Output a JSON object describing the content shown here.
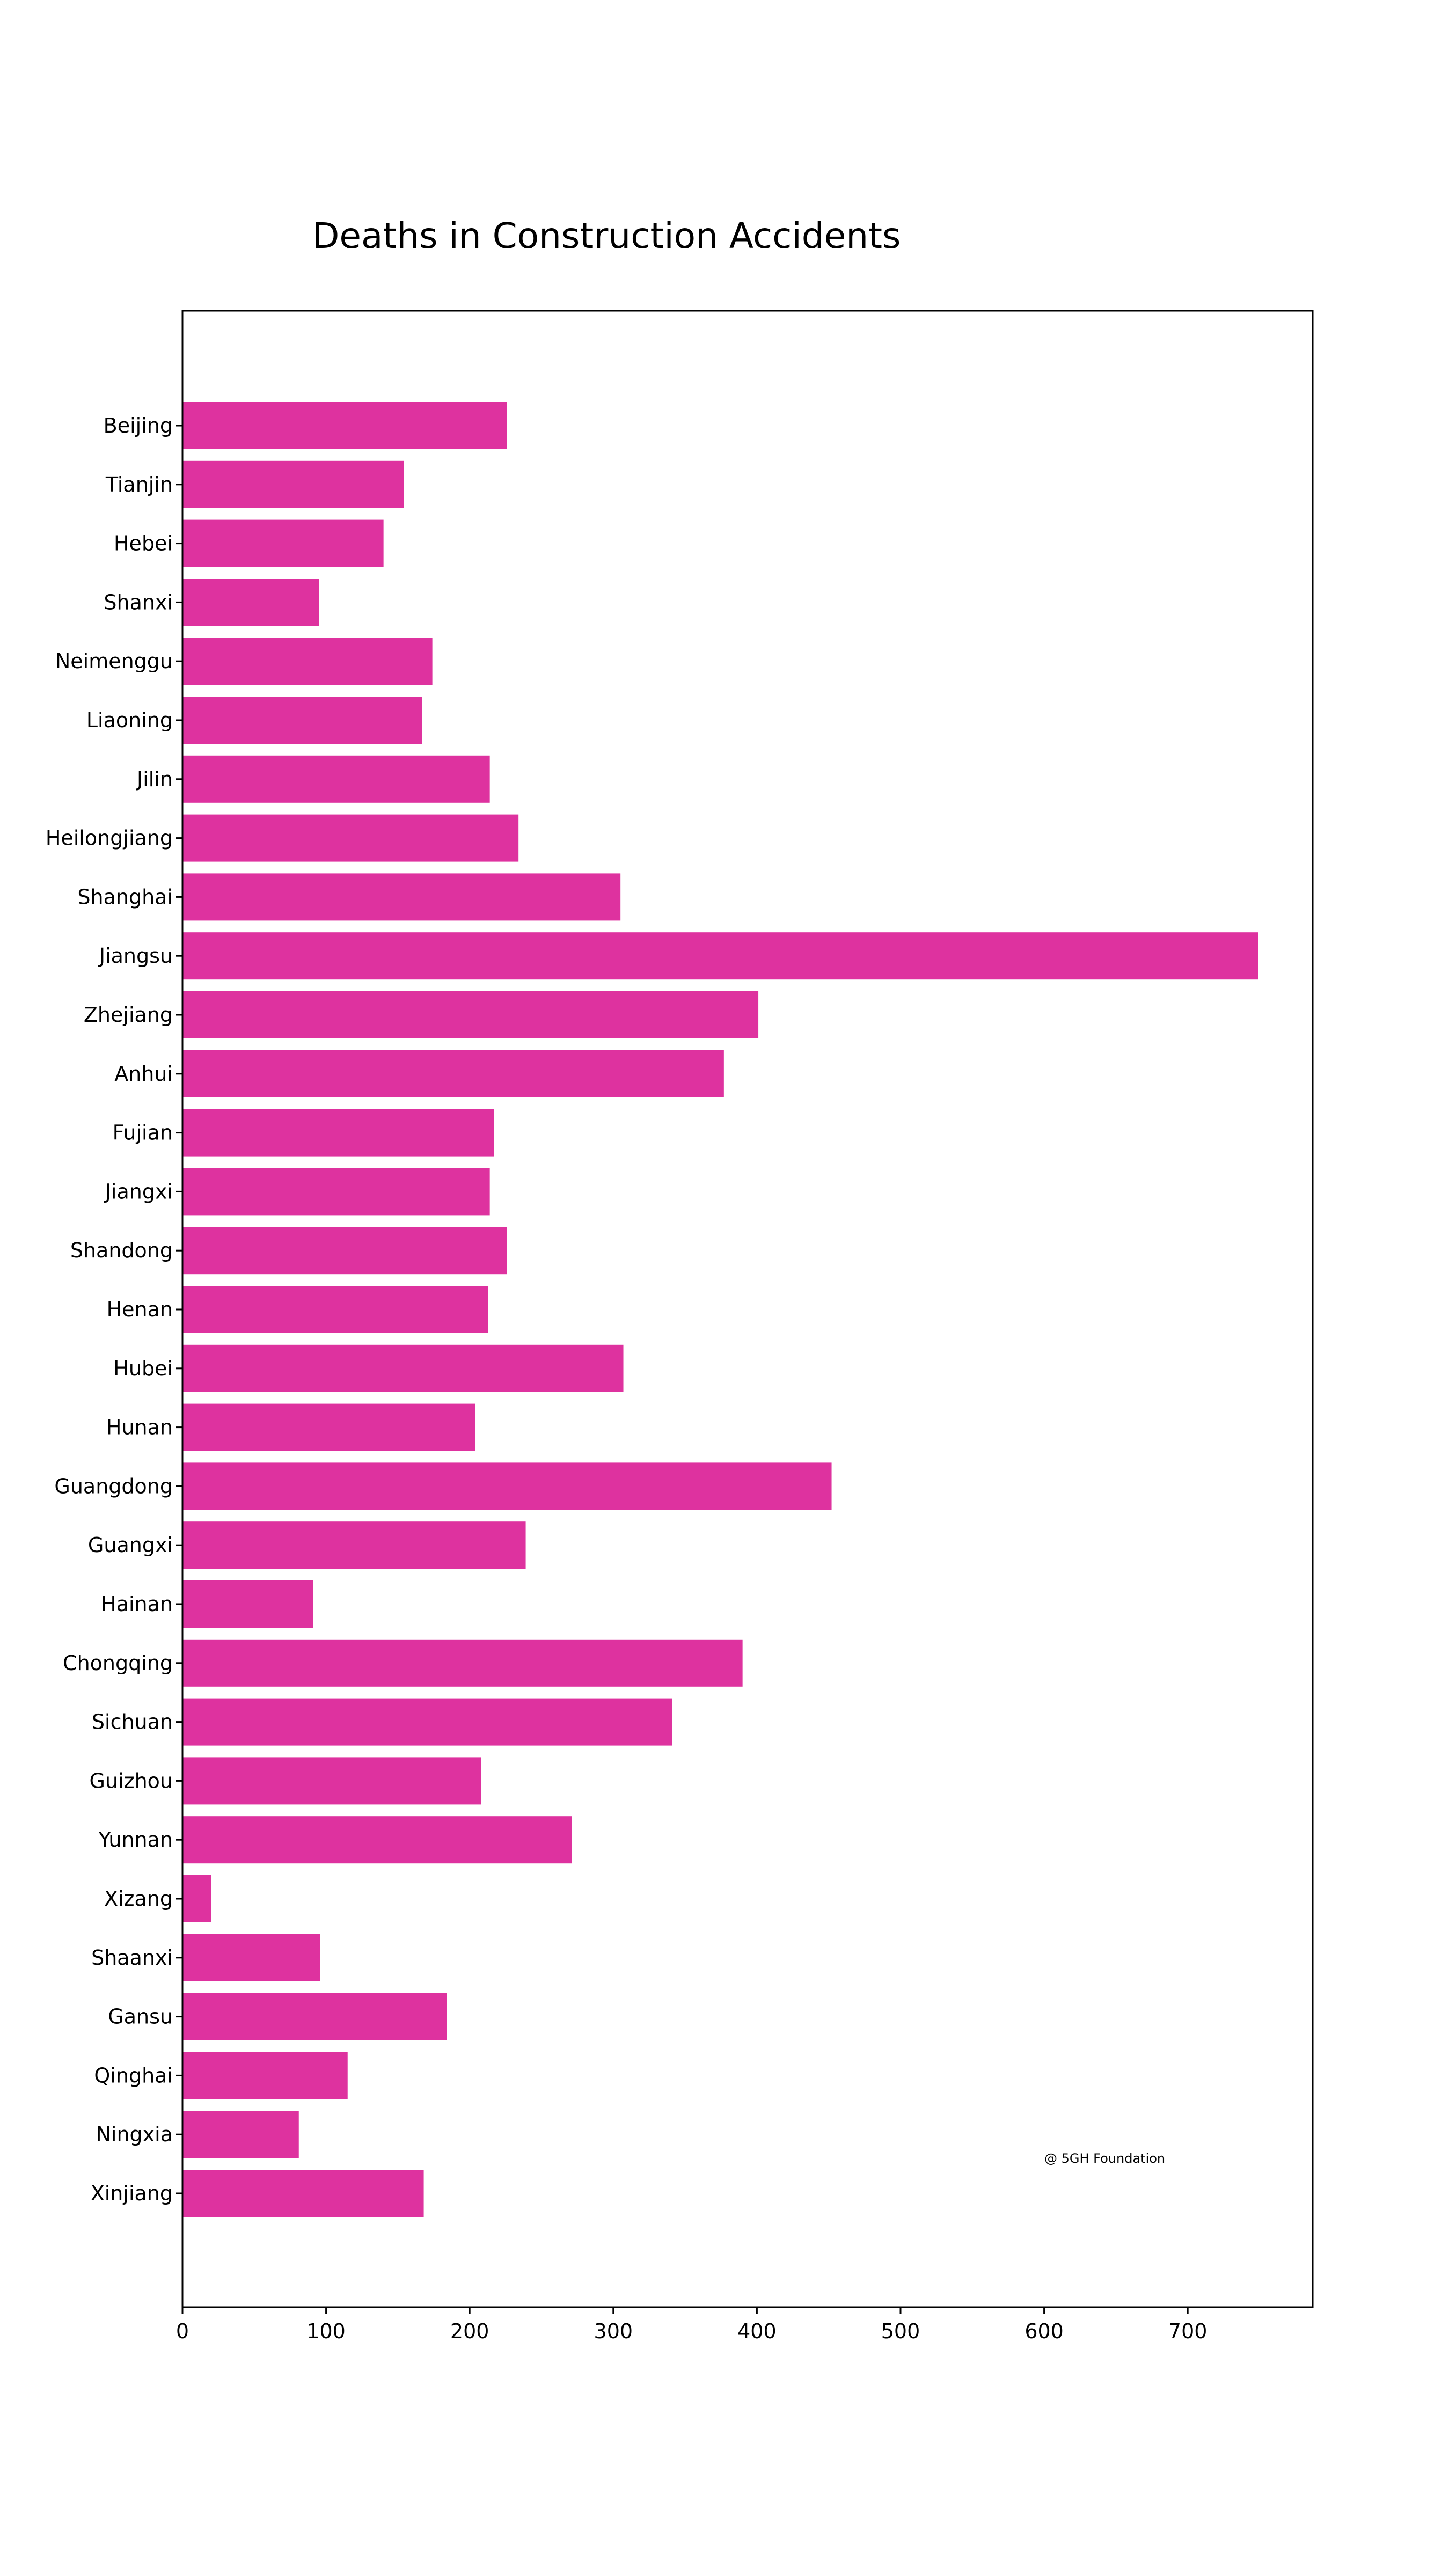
{
  "colors": {
    "bar": "#de329f",
    "axis": "#000000",
    "background": "#ffffff"
  },
  "chart_data": {
    "type": "bar",
    "orientation": "horizontal",
    "title": "Deaths in Construction Accidents",
    "xlabel": "",
    "ylabel": "",
    "annotation": "@ 5GH Foundation",
    "xlim": [
      0,
      787
    ],
    "xticks": [
      0,
      100,
      200,
      300,
      400,
      500,
      600,
      700
    ],
    "grid": false,
    "legend": "none",
    "categories": [
      "Beijing",
      "Tianjin",
      "Hebei",
      "Shanxi",
      "Neimenggu",
      "Liaoning",
      "Jilin",
      "Heilongjiang",
      "Shanghai",
      "Jiangsu",
      "Zhejiang",
      "Anhui",
      "Fujian",
      "Jiangxi",
      "Shandong",
      "Henan",
      "Hubei",
      "Hunan",
      "Guangdong",
      "Guangxi",
      "Hainan",
      "Chongqing",
      "Sichuan",
      "Guizhou",
      "Yunnan",
      "Xizang",
      "Shaanxi",
      "Gansu",
      "Qinghai",
      "Ningxia",
      "Xinjiang"
    ],
    "values": [
      226,
      154,
      140,
      95,
      174,
      167,
      214,
      234,
      305,
      749,
      401,
      377,
      217,
      214,
      226,
      213,
      307,
      204,
      452,
      239,
      91,
      390,
      341,
      208,
      271,
      20,
      96,
      184,
      115,
      81,
      168
    ]
  }
}
